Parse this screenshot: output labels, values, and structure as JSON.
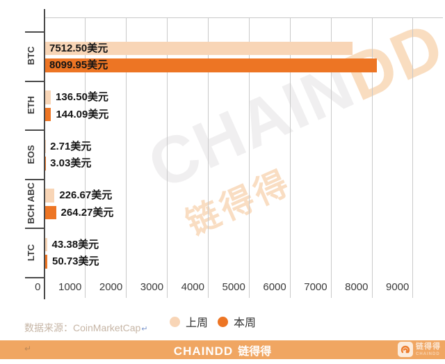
{
  "chart_data": {
    "type": "bar",
    "orientation": "horizontal",
    "categories": [
      "BTC",
      "ETH",
      "EOS",
      "BCH ABC",
      "LTC"
    ],
    "series": [
      {
        "name": "上周",
        "color": "#F8D5B6",
        "values": [
          7512.5,
          136.5,
          2.71,
          226.67,
          43.38
        ]
      },
      {
        "name": "本周",
        "color": "#ED7524",
        "values": [
          8099.95,
          144.09,
          3.03,
          264.27,
          50.73
        ]
      }
    ],
    "unit": "美元",
    "value_labels": [
      [
        "7512.50美元",
        "8099.95美元"
      ],
      [
        "136.50美元",
        "144.09美元"
      ],
      [
        "2.71美元",
        "3.03美元"
      ],
      [
        "226.67美元",
        "264.27美元"
      ],
      [
        "43.38美元",
        "50.73美元"
      ]
    ],
    "x_ticks": [
      0,
      1000,
      2000,
      3000,
      4000,
      5000,
      6000,
      7000,
      8000,
      9000
    ],
    "xlim": [
      0,
      9750
    ],
    "grid": "vertical-gridlines",
    "legend_position": "bottom-center"
  },
  "watermark": {
    "brand_gray": "CHAIN",
    "brand_orange": "DD",
    "brand_cn": "链得得"
  },
  "source": {
    "label": "数据来源：CoinMarketCap",
    "return_mark": "↵"
  },
  "footer": {
    "brand_en": "CHAINDD",
    "brand_cn": "链得得",
    "return_mark": "↵",
    "corner_brand_cn": "链得得",
    "corner_brand_en": "CHAINDD"
  },
  "colors": {
    "bar_last_week": "#F8D5B6",
    "bar_this_week": "#ED7524",
    "footer_banner": "#F0A662",
    "gridline": "#C9C9C9",
    "axis": "#4A4A4A",
    "value_text": "#141414",
    "source_text": "#C6B5A5",
    "watermark_gray": "#F0EFF0",
    "watermark_orange": "#F9DDC0"
  }
}
